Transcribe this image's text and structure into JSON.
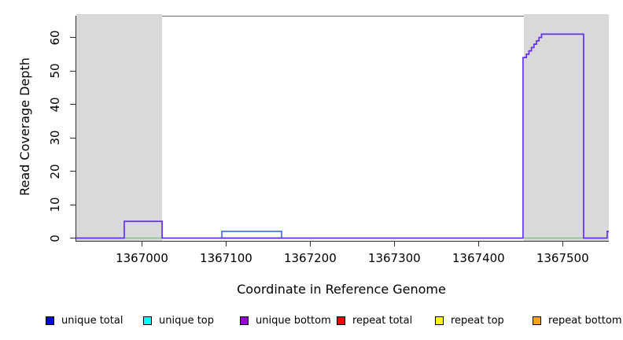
{
  "chart_data": {
    "type": "line",
    "title": "",
    "xlabel": "Coordinate in Reference Genome",
    "ylabel": "Read Coverage Depth",
    "xlim": [
      1366921,
      1367554
    ],
    "ylim": [
      0,
      66.5
    ],
    "x_ticks": [
      1367000,
      1367100,
      1367200,
      1367300,
      1367400,
      1367500
    ],
    "y_ticks": [
      0,
      10,
      20,
      30,
      40,
      50,
      60
    ],
    "grid": false,
    "legend_position": "bottom",
    "shade_color": "#D9D9D9",
    "shaded_regions": [
      {
        "start": 1366921,
        "end": 1367023
      },
      {
        "start": 1367453,
        "end": 1367554
      }
    ],
    "series": [
      {
        "name": "baseline-marker-green-left",
        "color": "#82C882",
        "lw": 1.5,
        "render": "poly",
        "points": [
          [
            1366978,
            0
          ],
          [
            1367023,
            0
          ]
        ]
      },
      {
        "name": "baseline-marker-green-right",
        "color": "#82C882",
        "lw": 1.5,
        "render": "poly",
        "points": [
          [
            1367453,
            0
          ],
          [
            1367524,
            0
          ]
        ]
      },
      {
        "name": "repeat-total-trace",
        "color": "#E05570",
        "lw": 1.3,
        "render": "poly",
        "points": [
          [
            1367094,
            0
          ],
          [
            1367166,
            0
          ]
        ]
      },
      {
        "name": "unique-total-trace",
        "color": "#4577E8",
        "lw": 1.7,
        "render": "poly",
        "points": [
          [
            1367094,
            0
          ],
          [
            1367094,
            2
          ],
          [
            1367165,
            2
          ],
          [
            1367165,
            0
          ]
        ]
      },
      {
        "name": "unique-bottom-trace",
        "color": "#6430E6",
        "lw": 1.7,
        "render": "step",
        "points": [
          [
            1366921,
            0
          ],
          [
            1366978,
            5
          ],
          [
            1367023,
            0
          ],
          [
            1367452,
            54
          ],
          [
            1367456,
            55
          ],
          [
            1367459,
            56
          ],
          [
            1367462,
            57
          ],
          [
            1367465,
            58
          ],
          [
            1367468,
            59
          ],
          [
            1367471,
            60
          ],
          [
            1367474,
            61
          ],
          [
            1367524,
            0
          ],
          [
            1367552,
            2
          ],
          [
            1367554,
            2
          ]
        ]
      }
    ]
  },
  "legend": {
    "items": [
      {
        "label": "unique total",
        "color": "#0000EE"
      },
      {
        "label": "unique top",
        "color": "#00FFFF"
      },
      {
        "label": "unique bottom",
        "color": "#9400D3"
      },
      {
        "label": "repeat total",
        "color": "#EE0000"
      },
      {
        "label": "repeat top",
        "color": "#FFFF00"
      },
      {
        "label": "repeat bottom",
        "color": "#FFA500"
      }
    ]
  }
}
